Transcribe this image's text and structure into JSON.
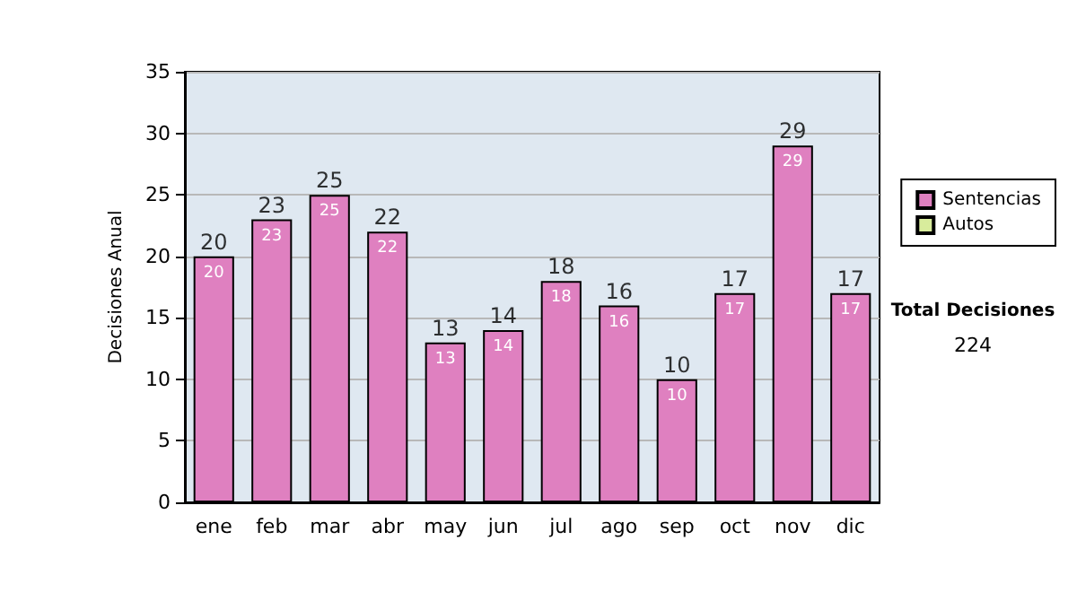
{
  "chart_data": {
    "type": "bar",
    "ylabel": "Decisiones Anual",
    "categories": [
      "ene",
      "feb",
      "mar",
      "abr",
      "may",
      "jun",
      "jul",
      "ago",
      "sep",
      "oct",
      "nov",
      "dic"
    ],
    "series": [
      {
        "name": "Sentencias",
        "color": "#df80c0",
        "values": [
          20,
          23,
          25,
          22,
          13,
          14,
          18,
          16,
          10,
          17,
          29,
          17
        ],
        "value_labels": [
          "20",
          "23",
          "25",
          "22",
          "13",
          "14",
          "18",
          "16",
          "10",
          "17",
          "29",
          "17"
        ]
      },
      {
        "name": "Autos",
        "color": "#d8ec9c",
        "values": [
          0,
          0,
          0,
          0,
          0,
          0,
          0,
          0,
          0,
          0,
          0,
          0
        ]
      }
    ],
    "stacked": true,
    "totals": [
      "20",
      "23",
      "25",
      "22",
      "13",
      "14",
      "18",
      "16",
      "10",
      "17",
      "29",
      "17"
    ],
    "ylim": [
      0,
      35
    ],
    "yticks": [
      0,
      5,
      10,
      15,
      20,
      25,
      30,
      35
    ],
    "grid": "y",
    "legend": "right",
    "annotations": [
      "Total Decisiones",
      "224"
    ]
  }
}
